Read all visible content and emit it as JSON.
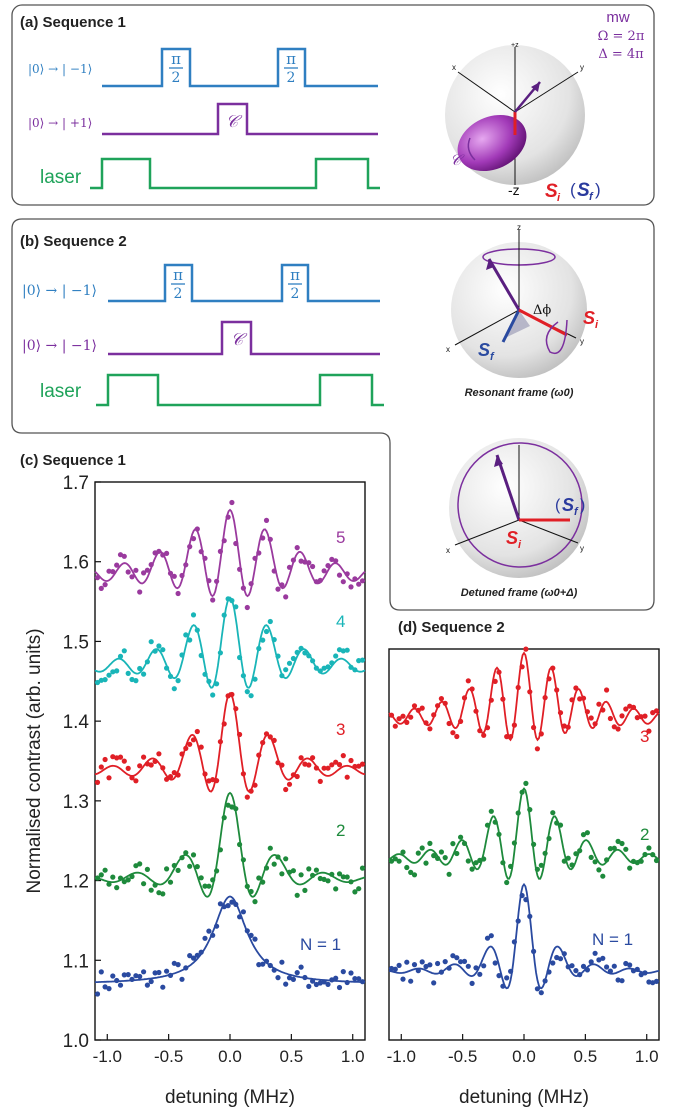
{
  "colors": {
    "blue": "#2f7fc1",
    "purple": "#7b2f9e",
    "green": "#1fa35a",
    "red": "#e01f26",
    "teal": "#19b5b8",
    "magenta": "#9a3a9e",
    "darkgreen": "#1e8a3c",
    "navy": "#2a4aa0",
    "panel_border": "#555555"
  },
  "panels": {
    "a": {
      "title": "(a) Sequence 1",
      "rows": [
        "|0⟩ → | −1⟩",
        "|0⟩ → | +1⟩",
        "laser"
      ],
      "pulse_pi_top": "π",
      "pulse_pi_bottom": "2",
      "pulse_c": "𝒞",
      "mw": {
        "title": "mw",
        "omega": "Ω = 2π",
        "delta": "Δ = 4π"
      },
      "sphere": {
        "x": "x",
        "y": "y",
        "z": "+z",
        "minus_z": "-z",
        "c": "𝒞",
        "si": "S",
        "si_sub": "i",
        "sf": "S",
        "sf_sub": "f"
      }
    },
    "b": {
      "title": "(b) Sequence 2",
      "rows": [
        "|0⟩ → | −1⟩",
        "|0⟩ → | −1⟩",
        "laser"
      ],
      "pulse_pi_top": "π",
      "pulse_pi_bottom": "2",
      "pulse_c": "𝒞",
      "sphere_res": {
        "z": "z",
        "x": "x",
        "y": "y",
        "dphi": "Δϕ",
        "sf": "S",
        "sf_sub": "f",
        "si": "S",
        "si_sub": "i",
        "caption": "Resonant frame (ω0)"
      },
      "sphere_det": {
        "x": "x",
        "y": "y",
        "si": "S",
        "si_sub": "i",
        "sf": "S",
        "sf_sub": "f",
        "caption": "Detuned frame (ω0+Δ)"
      }
    },
    "c": {
      "title": "(c) Sequence 1",
      "ylabel": "Normalised contrast (arb. units)",
      "xlabel": "detuning (MHz)",
      "yticks": [
        "1.0",
        "1.1",
        "1.2",
        "1.3",
        "1.4",
        "1.5",
        "1.6",
        "1.7"
      ],
      "xticks": [
        "-1.0",
        "-0.5",
        "0.0",
        "0.5",
        "1.0"
      ],
      "labels": [
        "N = 1",
        "2",
        "3",
        "4",
        "5"
      ]
    },
    "d": {
      "title": "(d) Sequence 2",
      "xlabel": "detuning (MHz)",
      "xticks": [
        "-1.0",
        "-0.5",
        "0.0",
        "0.5",
        "1.0"
      ],
      "labels": [
        "N = 1",
        "2",
        "3"
      ]
    }
  },
  "chart_data": [
    {
      "type": "scatter",
      "title": "(c) Sequence 1",
      "xlabel": "detuning (MHz)",
      "ylabel": "Normalised contrast (arb. units)",
      "xlim": [
        -1.1,
        1.1
      ],
      "ylim": [
        1.0,
        1.7
      ],
      "series": [
        {
          "name": "N = 1",
          "baseline": 1.07,
          "amplitude": 0.11,
          "center": 0.0,
          "width": 0.17,
          "oscillation": 0
        },
        {
          "name": "2",
          "baseline": 1.2,
          "amplitude": 0.11,
          "center": 0.0,
          "width": 0.24,
          "oscillation": 2
        },
        {
          "name": "3",
          "baseline": 1.335,
          "amplitude": 0.1,
          "center": 0.0,
          "width": 0.3,
          "oscillation": 3
        },
        {
          "name": "4",
          "baseline": 1.465,
          "amplitude": 0.09,
          "center": 0.0,
          "width": 0.38,
          "oscillation": 4
        },
        {
          "name": "5",
          "baseline": 1.58,
          "amplitude": 0.085,
          "center": 0.0,
          "width": 0.45,
          "oscillation": 5
        }
      ]
    },
    {
      "type": "scatter",
      "title": "(d) Sequence 2",
      "xlabel": "detuning (MHz)",
      "xlim": [
        -1.1,
        1.1
      ],
      "ylim": [
        1.0,
        1.7
      ],
      "series": [
        {
          "name": "N = 1",
          "baseline": 1.085,
          "amplitude": 0.11,
          "center": 0.0,
          "width": 0.18,
          "oscillation": 2
        },
        {
          "name": "2",
          "baseline": 1.225,
          "amplitude": 0.09,
          "center": 0.0,
          "width": 0.32,
          "oscillation": 4
        },
        {
          "name": "3",
          "baseline": 1.4,
          "amplitude": 0.085,
          "center": 0.0,
          "width": 0.42,
          "oscillation": 6
        }
      ]
    }
  ]
}
